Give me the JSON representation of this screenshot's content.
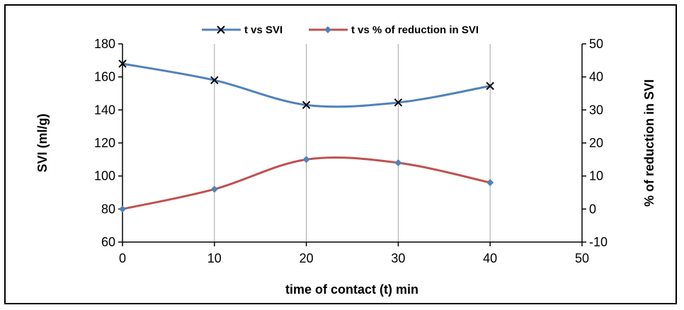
{
  "chart_data": {
    "type": "line",
    "x": [
      0,
      10,
      20,
      30,
      40
    ],
    "xlabel": "time of contact (t) min",
    "xlim": [
      0,
      50
    ],
    "xticks": [
      "0",
      "10",
      "20",
      "30",
      "40",
      "50"
    ],
    "ylabel": "SVI (ml/g)",
    "ylim": [
      60,
      180
    ],
    "yticks": [
      "60",
      "80",
      "100",
      "120",
      "140",
      "160",
      "180"
    ],
    "y2label": "% of  reduction in SVI",
    "y2lim": [
      -10,
      50
    ],
    "y2ticks": [
      "-10",
      "0",
      "10",
      "20",
      "30",
      "40",
      "50"
    ],
    "grid": "vertical",
    "legend": "top",
    "series": [
      {
        "name": "t vs SVI",
        "axis": "left",
        "marker": "x",
        "color": "#4F81BD",
        "values": [
          168,
          158,
          143,
          144.5,
          154.5
        ]
      },
      {
        "name": "t vs % of reduction in SVI",
        "axis": "right",
        "marker": "diamond",
        "color": "#C0504D",
        "values": [
          0,
          6,
          15,
          14,
          8
        ]
      }
    ]
  }
}
